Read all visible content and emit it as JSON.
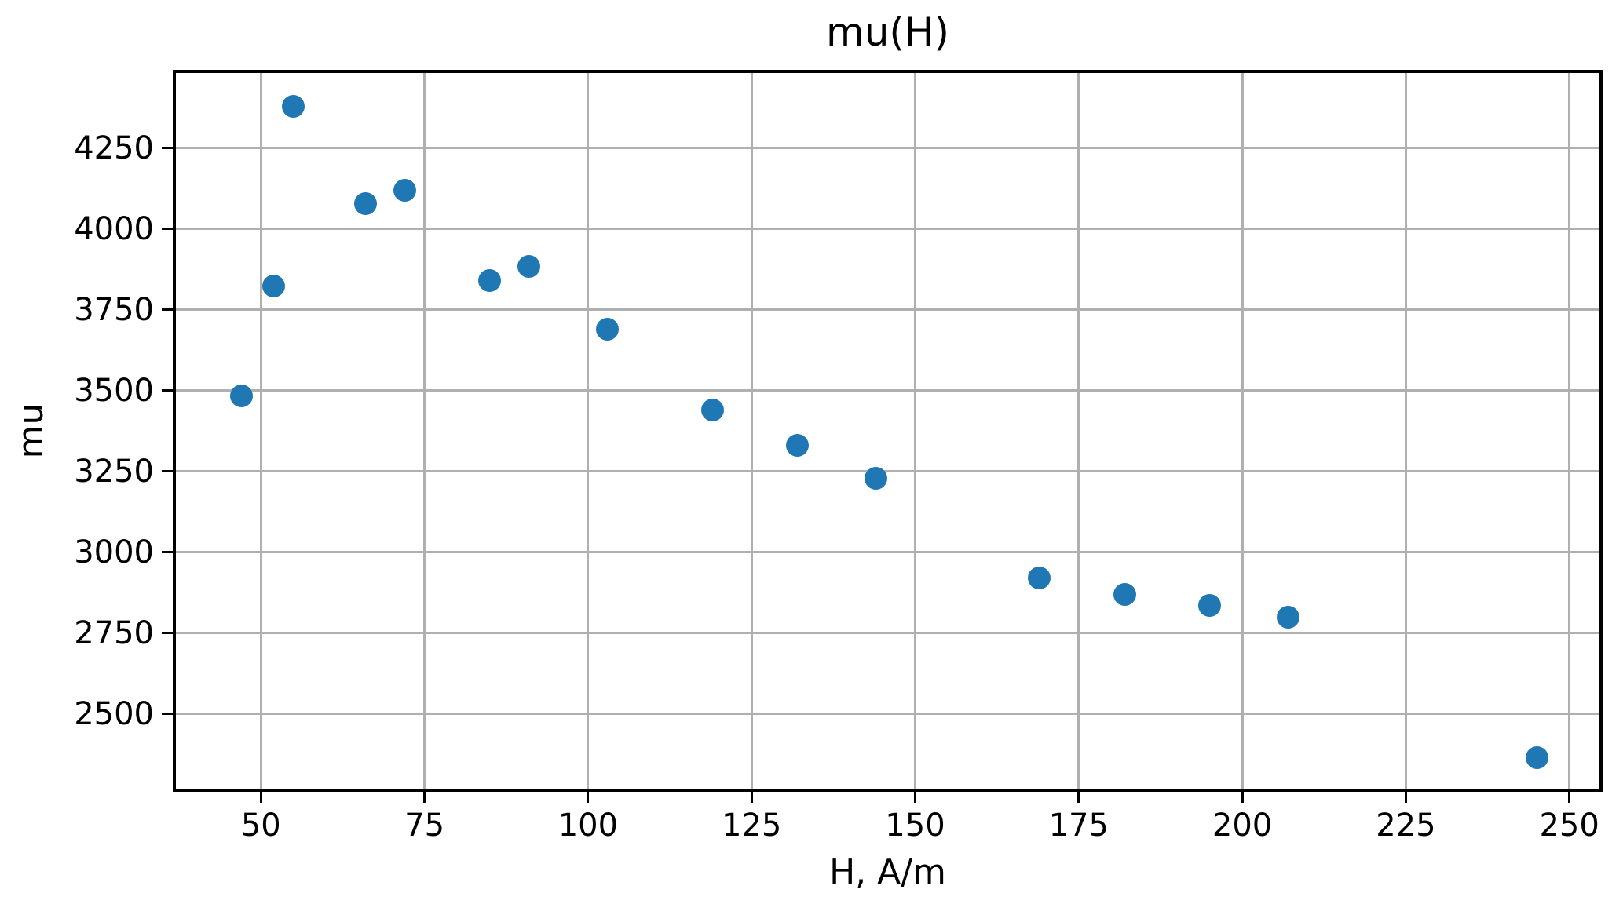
{
  "chart_data": {
    "type": "scatter",
    "title": "mu(H)",
    "xlabel": "H, A/m",
    "ylabel": "mu",
    "points": [
      {
        "x": 47,
        "y": 3485
      },
      {
        "x": 52,
        "y": 3825
      },
      {
        "x": 55,
        "y": 4380
      },
      {
        "x": 66,
        "y": 4080
      },
      {
        "x": 72,
        "y": 4120
      },
      {
        "x": 85,
        "y": 3840
      },
      {
        "x": 91,
        "y": 3885
      },
      {
        "x": 103,
        "y": 3690
      },
      {
        "x": 119,
        "y": 3440
      },
      {
        "x": 132,
        "y": 3330
      },
      {
        "x": 144,
        "y": 3230
      },
      {
        "x": 169,
        "y": 2920
      },
      {
        "x": 182,
        "y": 2870
      },
      {
        "x": 195,
        "y": 2835
      },
      {
        "x": 207,
        "y": 2800
      },
      {
        "x": 245,
        "y": 2365
      }
    ],
    "xlim": [
      37.0,
      254.6
    ],
    "ylim": [
      2269,
      4483
    ],
    "xticks": [
      50,
      75,
      100,
      125,
      150,
      175,
      200,
      225,
      250
    ],
    "yticks": [
      2500,
      2750,
      3000,
      3250,
      3500,
      3750,
      4000,
      4250
    ],
    "grid": true,
    "legend_position": "none",
    "colors": {
      "marker": "#1f77b4",
      "grid": "#b0b0b0",
      "spine": "#000000",
      "background": "#ffffff",
      "text": "#000000"
    }
  }
}
